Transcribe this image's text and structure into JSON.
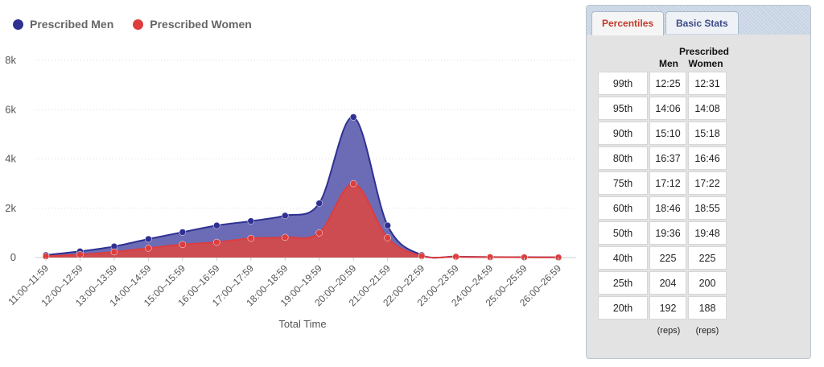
{
  "chart_data": {
    "type": "area",
    "xlabel": "Total Time",
    "ylabel": "",
    "categories": [
      "11:00–11:59",
      "12:00–12:59",
      "13:00–13:59",
      "14:00–14:59",
      "15:00–15:59",
      "16:00–16:59",
      "17:00–17:59",
      "18:00–18:59",
      "19:00–19:59",
      "20:00–20:59",
      "21:00–21:59",
      "22:00–22:59",
      "23:00–23:59",
      "24:00–24:59",
      "25:00–25:59",
      "26:00–26:59"
    ],
    "ylim": [
      0,
      8000
    ],
    "yticks": [
      0,
      2000,
      4000,
      6000,
      8000
    ],
    "ytick_labels": [
      "0",
      "2k",
      "4k",
      "6k",
      "8k"
    ],
    "grid": true,
    "legend": "top-left",
    "series": [
      {
        "name": "Prescribed Men",
        "color": "#2e3192",
        "fill": "#6060b0",
        "values": [
          100,
          250,
          450,
          750,
          1030,
          1300,
          1480,
          1700,
          2200,
          5700,
          1300,
          100,
          40,
          20,
          15,
          10
        ]
      },
      {
        "name": "Prescribed Women",
        "color": "#dd3d3d",
        "fill": "#d54a4a",
        "values": [
          50,
          120,
          230,
          380,
          530,
          620,
          780,
          820,
          1000,
          3000,
          800,
          60,
          30,
          15,
          10,
          5
        ]
      }
    ]
  },
  "panel": {
    "tabs": [
      {
        "label": "Percentiles",
        "active": true
      },
      {
        "label": "Basic Stats",
        "active": false
      }
    ],
    "header_group": "Prescribed",
    "col_men": "Men",
    "col_women": "Women",
    "rows": [
      {
        "p": "99th",
        "men": "12:25",
        "women": "12:31"
      },
      {
        "p": "95th",
        "men": "14:06",
        "women": "14:08"
      },
      {
        "p": "90th",
        "men": "15:10",
        "women": "15:18"
      },
      {
        "p": "80th",
        "men": "16:37",
        "women": "16:46"
      },
      {
        "p": "75th",
        "men": "17:12",
        "women": "17:22"
      },
      {
        "p": "60th",
        "men": "18:46",
        "women": "18:55"
      },
      {
        "p": "50th",
        "men": "19:36",
        "women": "19:48"
      },
      {
        "p": "40th",
        "men": "225",
        "women": "225"
      },
      {
        "p": "25th",
        "men": "204",
        "women": "200"
      },
      {
        "p": "20th",
        "men": "192",
        "women": "188"
      }
    ],
    "unit_men": "(reps)",
    "unit_women": "(reps)"
  }
}
